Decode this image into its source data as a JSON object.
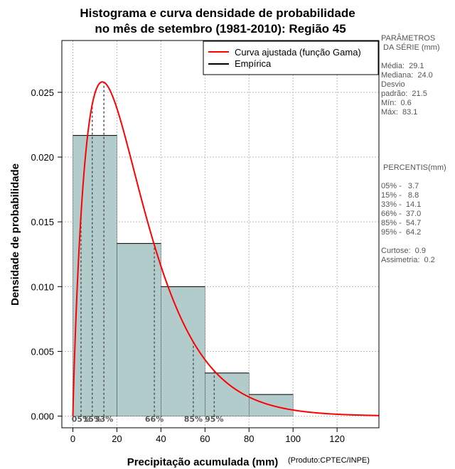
{
  "chart_data": {
    "type": "bar",
    "title": [
      "Histograma e curva densidade de probabilidade",
      "no mês de setembro (1981-2010): Região 45"
    ],
    "xlabel": "Precipitação acumulada (mm)",
    "ylabel": "Densidade de probabilidade",
    "credit": "(Produto:CPTEC/INPE)",
    "xlim": [
      -5,
      139
    ],
    "ylim": [
      -0.0009,
      0.029
    ],
    "xticks": [
      0,
      20,
      40,
      60,
      80,
      100,
      120
    ],
    "yticks": [
      0.0,
      0.005,
      0.01,
      0.015,
      0.02,
      0.025
    ],
    "ytick_labels": [
      "0.000",
      "0.005",
      "0.010",
      "0.015",
      "0.020",
      "0.025"
    ],
    "grid": true,
    "bins": [
      {
        "x0": 0,
        "x1": 20,
        "density": 0.02167
      },
      {
        "x0": 20,
        "x1": 40,
        "density": 0.01333
      },
      {
        "x0": 40,
        "x1": 60,
        "density": 0.01
      },
      {
        "x0": 60,
        "x1": 80,
        "density": 0.00333
      },
      {
        "x0": 80,
        "x1": 100,
        "density": 0.00167
      }
    ],
    "gamma_fit": {
      "shape": 1.9,
      "scale": 14.9,
      "color": "#ff0000"
    },
    "percentile_lines": [
      {
        "label": "05%",
        "value": 3.7
      },
      {
        "label": "15%",
        "value": 8.8
      },
      {
        "label": "33%",
        "value": 14.1
      },
      {
        "label": "66%",
        "value": 37.0
      },
      {
        "label": "85%",
        "value": 54.7
      },
      {
        "label": "95%",
        "value": 64.2
      }
    ],
    "legend": {
      "position": "top-right",
      "entries": [
        {
          "label": "Curva ajustada (função Gama)",
          "color": "#ff0000"
        },
        {
          "label": "Empírica",
          "color": "#000000"
        }
      ]
    },
    "colors": {
      "bar_fill": "#b2cccc",
      "grid": "#bbbbbb",
      "percentile_line": "#555555"
    }
  },
  "side_panel": {
    "stats_header": [
      "PARÂMETROS",
      " DA SÉRIE (mm)"
    ],
    "stats": [
      "Média:  29.1",
      "Mediana:  24.0",
      "Desvio",
      "padrão:  21.5",
      "Mín:  0.6",
      "Máx:  83.1"
    ],
    "percentiles_header": " PERCENTIS(mm)",
    "percentiles": [
      "05% -   3.7",
      "15% -   8.8",
      "33% -  14.1",
      "66% -  37.0",
      "85% -  54.7",
      "95% -  64.2"
    ],
    "extra": [
      "Curtose:  0.9",
      "Assimetria:  0.2"
    ]
  }
}
